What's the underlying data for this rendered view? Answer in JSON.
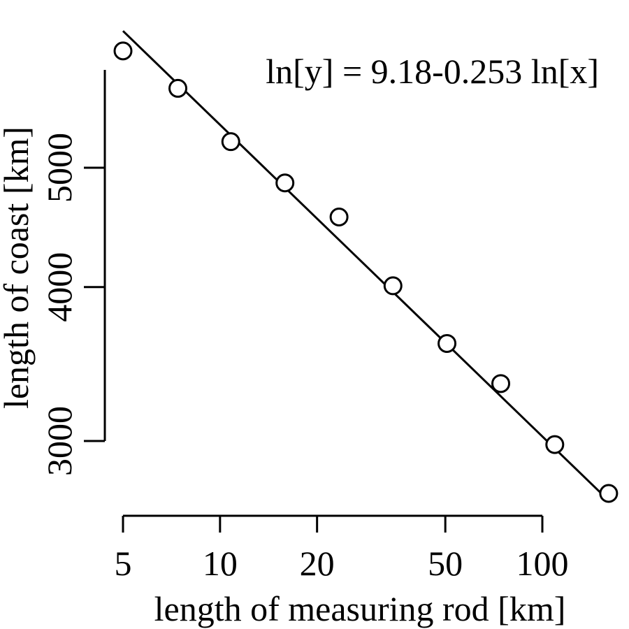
{
  "chart_data": {
    "type": "scatter",
    "title": "",
    "xlabel": "length of measuring rod [km]",
    "ylabel": "length of coast [km]",
    "x_scale": "log",
    "y_scale": "log",
    "xlim": [
      5,
      150
    ],
    "ylim": [
      2650,
      6300
    ],
    "x_ticks": [
      5,
      10,
      20,
      50,
      100
    ],
    "x_tick_labels": [
      "5",
      "10",
      "20",
      "50",
      "100"
    ],
    "y_ticks": [
      3000,
      4000,
      5000
    ],
    "y_tick_labels": [
      "3000",
      "4000",
      "5000"
    ],
    "points": {
      "x": [
        5,
        7.4,
        10.8,
        15.9,
        23.4,
        34.4,
        50.6,
        74.3,
        109.3,
        160.6
      ],
      "y": [
        6220,
        5800,
        5250,
        4860,
        4560,
        4010,
        3600,
        3340,
        2980,
        2720
      ]
    },
    "fit": {
      "intercept": 9.18,
      "slope": -0.253,
      "label": "ln[y] = 9.18-0.253 ln[x]"
    },
    "grid": false,
    "legend": "none"
  }
}
